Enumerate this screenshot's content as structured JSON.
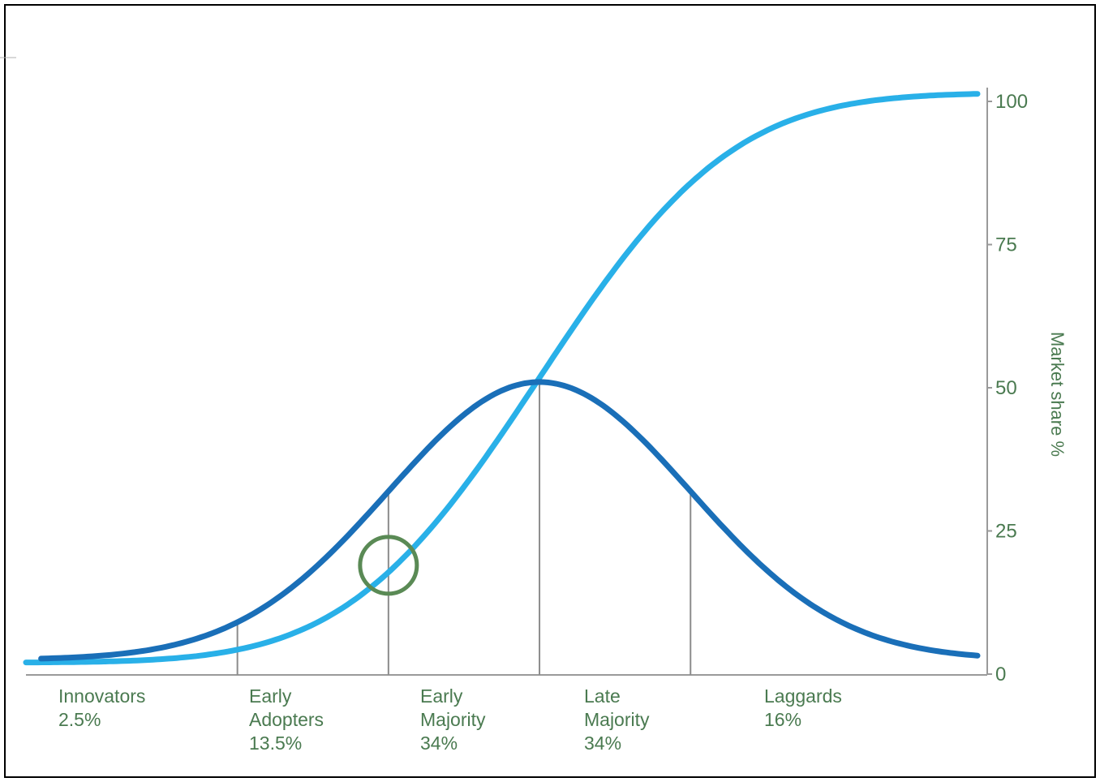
{
  "colors": {
    "frame": "#000000",
    "axis": "#9a9a9a",
    "divider": "#8c8c8c",
    "text": "#4a7a50",
    "bell_curve": "#1a6fb8",
    "s_curve": "#29b0e8",
    "marker": "#5a8a55"
  },
  "chart_data": {
    "type": "line",
    "title": "",
    "xlabel": "",
    "ylabel": "Market share %",
    "y_axis_side": "right",
    "ylim": [
      0,
      100
    ],
    "yticks": [
      "0",
      "25",
      "50",
      "75",
      "100"
    ],
    "grid": false,
    "legend": "none",
    "segments": [
      {
        "name": "Innovators",
        "share": "2.5%",
        "lines": [
          "Innovators",
          "2.5%"
        ]
      },
      {
        "name": "Early Adopters",
        "share": "13.5%",
        "lines": [
          "Early",
          "Adopters",
          "13.5%"
        ]
      },
      {
        "name": "Early Majority",
        "share": "34%",
        "lines": [
          "Early",
          "Majority",
          "34%"
        ]
      },
      {
        "name": "Late Majority",
        "share": "34%",
        "lines": [
          "Late",
          "Majority",
          "34%"
        ]
      },
      {
        "name": "Laggards",
        "share": "16%",
        "lines": [
          "Laggards",
          "16%"
        ]
      }
    ],
    "x_domain": [
      -3.4,
      2.9
    ],
    "segment_boundaries_sd": [
      -2,
      -1,
      0,
      1
    ],
    "series": [
      {
        "curve": "adoption-bell",
        "kind": "normal-pdf",
        "peak_value": 51,
        "base_value": 2.5
      },
      {
        "curve": "cumulative-market-share",
        "kind": "normal-cdf",
        "min_value": 2,
        "max_value": 101.5
      }
    ],
    "annotations": [
      {
        "type": "circle",
        "at_sd": -1,
        "value": 19,
        "meaning": "chasm"
      }
    ]
  }
}
